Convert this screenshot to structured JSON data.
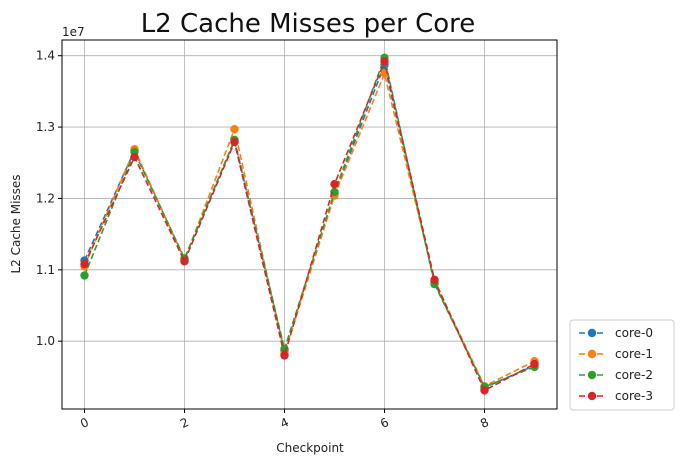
{
  "chart_data": {
    "type": "line",
    "title": "L2 Cache Misses per Core",
    "xlabel": "Checkpoint",
    "ylabel": "L2 Cache Misses",
    "y_offset_label": "1e7",
    "x": [
      0,
      1,
      2,
      3,
      4,
      5,
      6,
      7,
      8,
      9
    ],
    "xlim": [
      -0.45,
      9.45
    ],
    "ylim": [
      9.05,
      14.22
    ],
    "x_ticks": [
      0,
      2,
      4,
      6,
      8
    ],
    "y_ticks": [
      10.0,
      11.0,
      12.0,
      13.0,
      14.0
    ],
    "y_tick_labels": [
      "1.0",
      "1.1",
      "1.2",
      "1.3",
      "1.4"
    ],
    "grid": true,
    "legend_position": "outside-bottom-right",
    "line_style": "dashed",
    "marker": "circle",
    "series": [
      {
        "name": "core-0",
        "color": "#1f77b4",
        "values": [
          11.13,
          12.67,
          11.15,
          12.81,
          9.87,
          12.07,
          13.87,
          10.82,
          9.35,
          9.66
        ]
      },
      {
        "name": "core-1",
        "color": "#ff7f0e",
        "values": [
          11.05,
          12.69,
          11.14,
          12.97,
          9.83,
          12.04,
          13.75,
          10.84,
          9.37,
          9.72
        ]
      },
      {
        "name": "core-2",
        "color": "#2ca02c",
        "values": [
          10.92,
          12.65,
          11.16,
          12.82,
          9.89,
          12.09,
          13.97,
          10.8,
          9.36,
          9.64
        ]
      },
      {
        "name": "core-3",
        "color": "#d62728",
        "values": [
          11.08,
          12.58,
          11.12,
          12.79,
          9.8,
          12.2,
          13.92,
          10.86,
          9.31,
          9.68
        ]
      }
    ]
  }
}
